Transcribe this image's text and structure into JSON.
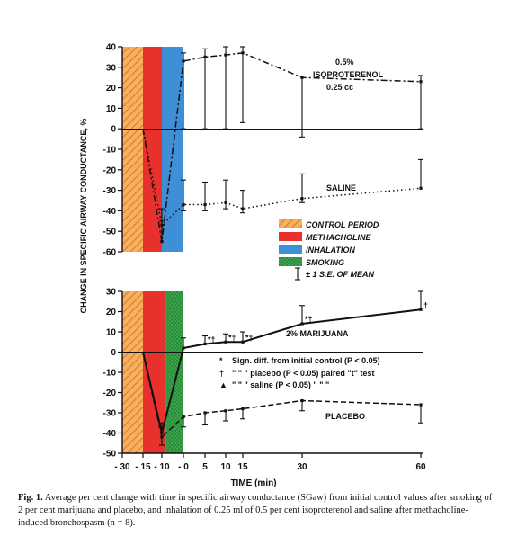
{
  "chart_data": {
    "type": "line",
    "ylabel": "CHANGE IN SPECIFIC AIRWAY CONDUCTANCE, %",
    "xlabel": "TIME (min)",
    "x_ticks": [
      -30,
      -15,
      -10,
      0,
      5,
      10,
      15,
      30,
      60
    ],
    "x_tick_labels": [
      "- 30",
      "- 15",
      "- 10",
      "- 0",
      "5",
      "10",
      "15",
      "30",
      "60"
    ],
    "bands": [
      {
        "name": "CONTROL PERIOD",
        "from": -30,
        "to": -15,
        "color": "#f4a04a",
        "pattern": "hatch"
      },
      {
        "name": "METHACHOLINE",
        "from": -15,
        "to": -10,
        "color": "#e8302c"
      },
      {
        "name": "INHALATION",
        "from": -10,
        "to": 0,
        "color": "#3f8fd6"
      },
      {
        "name": "SMOKING",
        "from": -10,
        "to": 0,
        "color": "#2f9a3f"
      }
    ],
    "legend": {
      "items": [
        "CONTROL PERIOD",
        "METHACHOLINE",
        "INHALATION",
        "SMOKING"
      ],
      "sem_label": "± 1 S.E. OF MEAN"
    },
    "panels": [
      {
        "name": "top",
        "ylim": [
          -60,
          40
        ],
        "y_ticks": [
          40,
          30,
          20,
          10,
          0,
          -10,
          -20,
          -30,
          -40,
          -50,
          -60
        ],
        "series": [
          {
            "name": "0.5% ISOPROTERENOL 0.25 cc",
            "label_lines": [
              "0.5%",
              "ISOPROTERENOL",
              "0.25 cc"
            ],
            "style": "dashdot",
            "x": [
              -15,
              -10,
              0,
              5,
              10,
              15,
              30,
              60
            ],
            "y": [
              0,
              -55,
              33,
              35,
              36,
              37,
              25,
              23
            ],
            "err_up": [
              0,
              10,
              4,
              4,
              4,
              3,
              0,
              3
            ],
            "err_down": [
              0,
              0,
              33,
              35,
              36,
              34,
              29,
              23
            ]
          },
          {
            "name": "SALINE",
            "label_lines": [
              "SALINE"
            ],
            "style": "dotted",
            "x": [
              -15,
              -10,
              0,
              5,
              10,
              15,
              30,
              60
            ],
            "y": [
              0,
              -47,
              -37,
              -37,
              -36,
              -39,
              -34,
              -29
            ],
            "err_up": [
              0,
              8,
              12,
              11,
              11,
              9,
              12,
              14
            ],
            "err_down": [
              0,
              0,
              3,
              3,
              3,
              2,
              2,
              0
            ]
          }
        ]
      },
      {
        "name": "bottom",
        "ylim": [
          -50,
          30
        ],
        "y_ticks": [
          30,
          20,
          10,
          0,
          -10,
          -20,
          -30,
          -40,
          -50
        ],
        "series": [
          {
            "name": "2% MARIJUANA",
            "label_lines": [
              "2% MARIJUANA"
            ],
            "style": "solid",
            "x": [
              -15,
              -10,
              0,
              5,
              10,
              15,
              30,
              60
            ],
            "y": [
              0,
              -40,
              2,
              4,
              5,
              5,
              14,
              21
            ],
            "err_up": [
              0,
              5,
              5,
              4,
              4,
              5,
              9,
              9
            ],
            "err_down": [
              0,
              0,
              0,
              0,
              0,
              0,
              0,
              0
            ],
            "markers": [
              "",
              "",
              "",
              "*†",
              "*†",
              "*†",
              "*†",
              "†"
            ]
          },
          {
            "name": "PLACEBO",
            "label_lines": [
              "PLACEBO"
            ],
            "style": "dashed",
            "x": [
              -15,
              -10,
              0,
              5,
              10,
              15,
              30,
              60
            ],
            "y": [
              0,
              -42,
              -32,
              -30,
              -29,
              -28,
              -24,
              -26
            ],
            "err_up": [
              0,
              0,
              0,
              0,
              0,
              0,
              0,
              0
            ],
            "err_down": [
              0,
              4,
              5,
              6,
              5,
              5,
              5,
              9
            ]
          }
        ]
      }
    ],
    "notes": [
      {
        "sym": "*",
        "text": "Sign. diff. from initial control (P < 0.05)"
      },
      {
        "sym": "†",
        "text": "\"     \"     \"      placebo   (P < 0.05) paired \"t\" test"
      },
      {
        "sym": "▲",
        "text": "\"     \"     \"      saline     (P < 0.05)   \"      \"      \""
      }
    ]
  },
  "caption": {
    "label": "Fig. 1.",
    "text": "Average per cent change with time in specific airway conductance (SGaw) from initial control values after smoking of 2 per cent marijuana and placebo, and inhalation of 0.25 ml of 0.5 per cent isoproterenol and saline after methacholine-induced bronchospasm (n = 8)."
  },
  "colors": {
    "control": "#f4a04a",
    "methacholine": "#e8302c",
    "inhalation": "#3f8fd6",
    "smoking": "#2f9a3f"
  }
}
